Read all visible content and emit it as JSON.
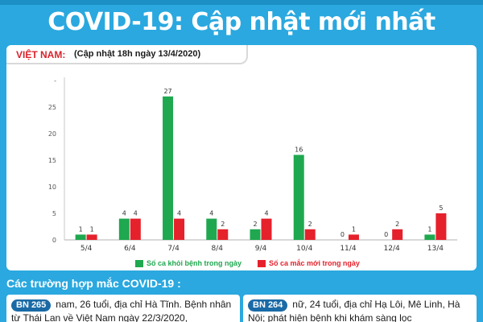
{
  "header": {
    "title": "COVID-19: Cập nhật mới nhất"
  },
  "panel": {
    "country": "VIỆT NAM:",
    "update": "(Cập nhật 18h ngày 13/4/2020)"
  },
  "chart_data": {
    "type": "bar",
    "categories": [
      "5/4",
      "6/4",
      "7/4",
      "8/4",
      "9/4",
      "10/4",
      "11/4",
      "12/4",
      "13/4"
    ],
    "series": [
      {
        "name": "Số ca khỏi bệnh trong ngày",
        "color": "#1fa84f",
        "values": [
          1,
          4,
          27,
          4,
          2,
          16,
          0,
          0,
          1
        ]
      },
      {
        "name": "Số ca mắc mới trong ngày",
        "color": "#e5212c",
        "values": [
          1,
          4,
          4,
          2,
          4,
          2,
          1,
          2,
          5
        ]
      }
    ],
    "yticks": [
      "0",
      "5",
      "10",
      "15",
      "20",
      "25",
      "-"
    ],
    "ylim": [
      0,
      30
    ],
    "legend_position": "bottom"
  },
  "cases": {
    "title": "Các trường hợp mắc COVID-19 :",
    "items": [
      {
        "badge": "BN 265",
        "text": "nam, 26 tuổi, địa chỉ Hà Tĩnh. Bệnh nhân từ Thái Lan về Việt Nam ngày 22/3/2020,"
      },
      {
        "badge": "BN 264",
        "text": "nữ, 24 tuổi, địa chỉ Hạ Lôi, Mê Linh, Hà Nội; phát hiện bệnh khi khám sàng lọc"
      }
    ]
  }
}
